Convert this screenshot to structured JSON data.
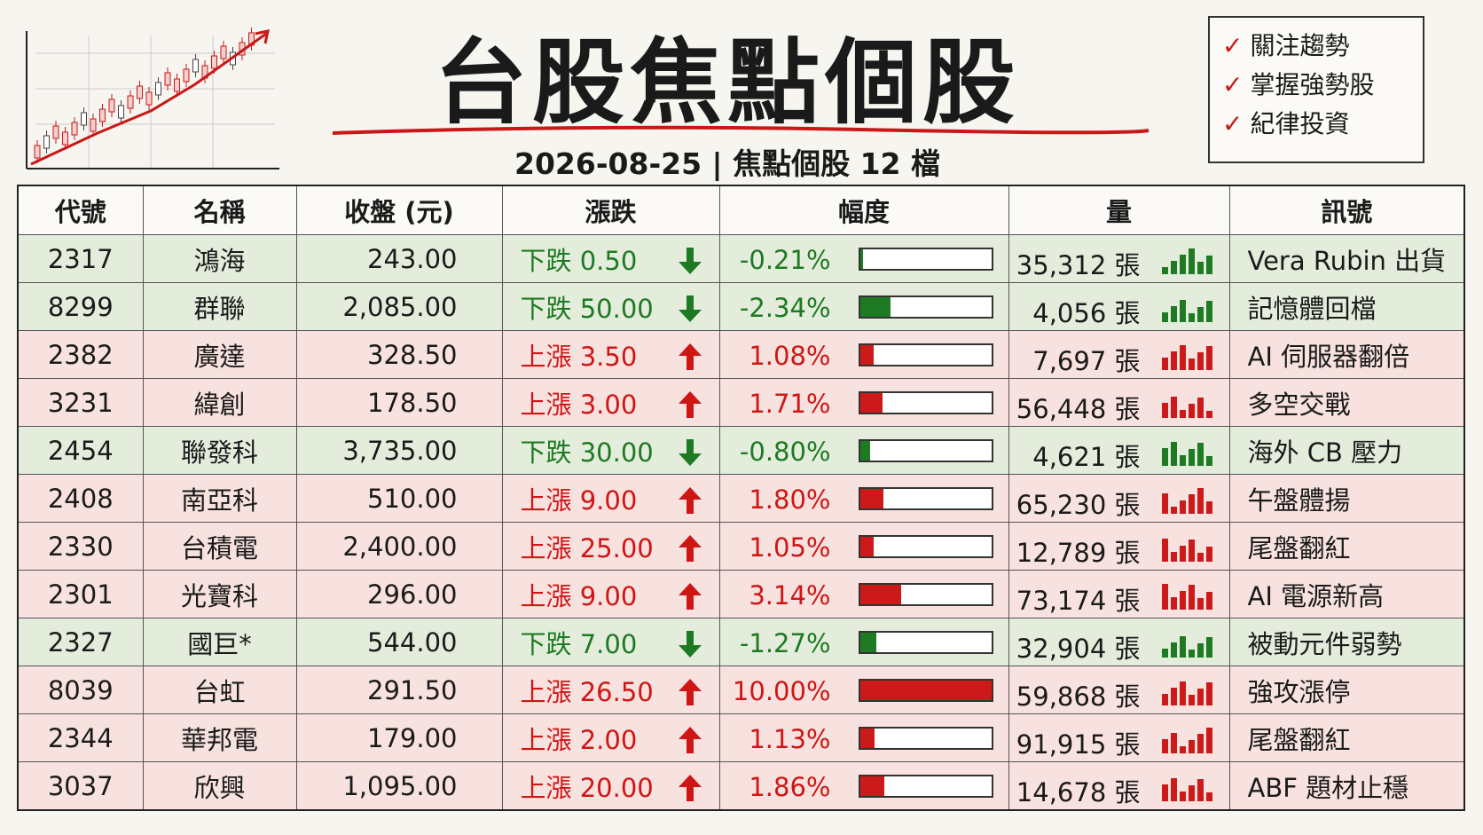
{
  "header": {
    "title": "台股焦點個股",
    "subtitle": "2026-08-25 | 焦點個股 12 檔"
  },
  "notes": [
    "關注趨勢",
    "掌握強勢股",
    "紀律投資"
  ],
  "table": {
    "columns": [
      "代號",
      "名稱",
      "收盤 (元)",
      "漲跌",
      "幅度",
      "量",
      "訊號"
    ],
    "rows": [
      {
        "code": "2317",
        "name": "鴻海",
        "close": "243.00",
        "change": "下跌 0.50",
        "pct": -0.21,
        "pct_label": "-0.21%",
        "volume": "35,312 張",
        "signal": "Vera Rubin 出貨"
      },
      {
        "code": "8299",
        "name": "群聯",
        "close": "2,085.00",
        "change": "下跌 50.00",
        "pct": -2.34,
        "pct_label": "-2.34%",
        "volume": "4,056 張",
        "signal": "記憶體回檔"
      },
      {
        "code": "2382",
        "name": "廣達",
        "close": "328.50",
        "change": "上漲 3.50",
        "pct": 1.08,
        "pct_label": "1.08%",
        "volume": "7,697 張",
        "signal": "AI 伺服器翻倍"
      },
      {
        "code": "3231",
        "name": "緯創",
        "close": "178.50",
        "change": "上漲 3.00",
        "pct": 1.71,
        "pct_label": "1.71%",
        "volume": "56,448 張",
        "signal": "多空交戰"
      },
      {
        "code": "2454",
        "name": "聯發科",
        "close": "3,735.00",
        "change": "下跌 30.00",
        "pct": -0.8,
        "pct_label": "-0.80%",
        "volume": "4,621 張",
        "signal": "海外 CB 壓力"
      },
      {
        "code": "2408",
        "name": "南亞科",
        "close": "510.00",
        "change": "上漲 9.00",
        "pct": 1.8,
        "pct_label": "1.80%",
        "volume": "65,230 張",
        "signal": "午盤體揚"
      },
      {
        "code": "2330",
        "name": "台積電",
        "close": "2,400.00",
        "change": "上漲 25.00",
        "pct": 1.05,
        "pct_label": "1.05%",
        "volume": "12,789 張",
        "signal": "尾盤翻紅"
      },
      {
        "code": "2301",
        "name": "光寶科",
        "close": "296.00",
        "change": "上漲 9.00",
        "pct": 3.14,
        "pct_label": "3.14%",
        "volume": "73,174 張",
        "signal": "AI 電源新高"
      },
      {
        "code": "2327",
        "name": "國巨*",
        "close": "544.00",
        "change": "下跌 7.00",
        "pct": -1.27,
        "pct_label": "-1.27%",
        "volume": "32,904 張",
        "signal": "被動元件弱勢"
      },
      {
        "code": "8039",
        "name": "台虹",
        "close": "291.50",
        "change": "上漲 26.50",
        "pct": 10.0,
        "pct_label": "10.00%",
        "volume": "59,868 張",
        "signal": "強攻漲停"
      },
      {
        "code": "2344",
        "name": "華邦電",
        "close": "179.00",
        "change": "上漲 2.00",
        "pct": 1.13,
        "pct_label": "1.13%",
        "volume": "91,915 張",
        "signal": "尾盤翻紅"
      },
      {
        "code": "3037",
        "name": "欣興",
        "close": "1,095.00",
        "change": "上漲 20.00",
        "pct": 1.86,
        "pct_label": "1.86%",
        "volume": "14,678 張",
        "signal": "ABF 題材止穩"
      }
    ]
  }
}
